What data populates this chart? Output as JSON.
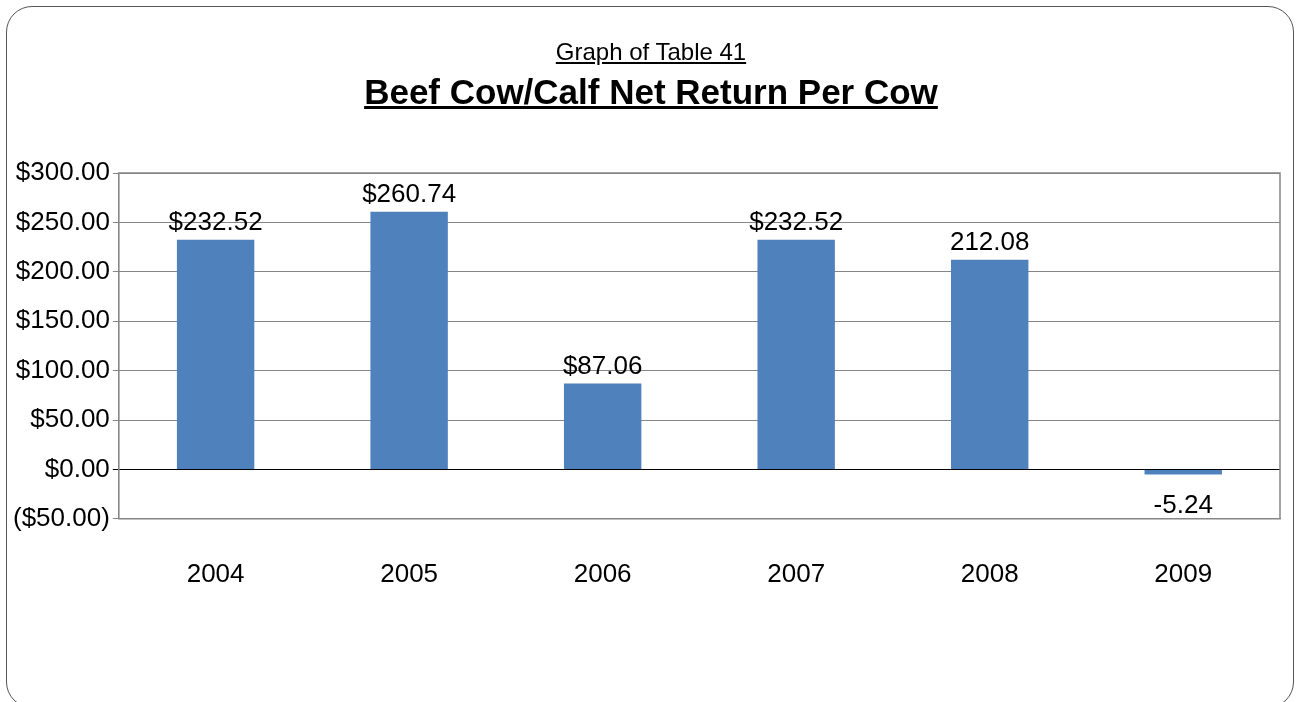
{
  "chart_data": {
    "type": "bar",
    "subtitle": "Graph of Table 41",
    "title": "Beef Cow/Calf Net Return Per Cow",
    "categories": [
      "2004",
      "2005",
      "2006",
      "2007",
      "2008",
      "2009"
    ],
    "values": [
      232.52,
      260.74,
      87.06,
      232.52,
      212.08,
      -5.24
    ],
    "value_labels": [
      "$232.52",
      "$260.74",
      "$87.06",
      "$232.52",
      "212.08",
      "-5.24"
    ],
    "color": "#4f81bd",
    "ylim": [
      -50,
      300
    ],
    "yticks": [
      {
        "value": -50,
        "label": "($50.00)"
      },
      {
        "value": 0,
        "label": "$0.00"
      },
      {
        "value": 50,
        "label": "$50.00"
      },
      {
        "value": 100,
        "label": "$100.00"
      },
      {
        "value": 150,
        "label": "$150.00"
      },
      {
        "value": 200,
        "label": "$200.00"
      },
      {
        "value": 250,
        "label": "$250.00"
      },
      {
        "value": 300,
        "label": "$300.00"
      }
    ],
    "grid": "y",
    "legend": false
  }
}
